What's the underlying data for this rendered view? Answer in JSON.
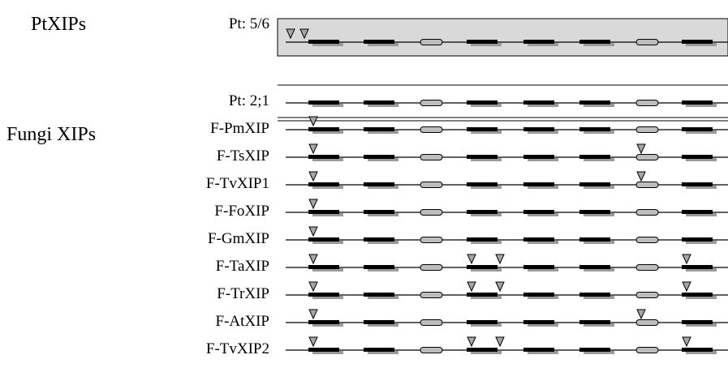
{
  "groups": {
    "pt": "PtXIPs",
    "fungi": "Fungi XIPs"
  },
  "segment_types": [
    "exon",
    "exon",
    "short",
    "exon",
    "exon",
    "exon",
    "short",
    "exon"
  ],
  "rows": [
    {
      "label": "Pt: 5/6",
      "markers": [
        {
          "slot": 0,
          "pos": "left-far"
        },
        {
          "slot": 0,
          "pos": "left"
        }
      ]
    },
    {
      "label": "Pt: 2;1",
      "markers": []
    },
    {
      "label": "F-PmXIP",
      "markers": [
        {
          "slot": 0,
          "pos": "left"
        }
      ]
    },
    {
      "label": "F-TsXIP",
      "markers": [
        {
          "slot": 0,
          "pos": "left"
        },
        {
          "slot": 6,
          "pos": "left"
        }
      ]
    },
    {
      "label": "F-TvXIP1",
      "markers": [
        {
          "slot": 0,
          "pos": "left"
        },
        {
          "slot": 6,
          "pos": "left"
        }
      ]
    },
    {
      "label": "F-FoXIP",
      "markers": [
        {
          "slot": 0,
          "pos": "left"
        }
      ]
    },
    {
      "label": "F-GmXIP",
      "markers": [
        {
          "slot": 0,
          "pos": "left"
        }
      ]
    },
    {
      "label": "F-TaXIP",
      "markers": [
        {
          "slot": 0,
          "pos": "left"
        },
        {
          "slot": 3,
          "pos": "left"
        },
        {
          "slot": 3,
          "pos": "right"
        },
        {
          "slot": 7,
          "pos": "left"
        }
      ]
    },
    {
      "label": "F-TrXIP",
      "markers": [
        {
          "slot": 0,
          "pos": "left"
        },
        {
          "slot": 3,
          "pos": "left"
        },
        {
          "slot": 3,
          "pos": "right"
        },
        {
          "slot": 7,
          "pos": "left"
        }
      ]
    },
    {
      "label": "F-AtXIP",
      "markers": [
        {
          "slot": 0,
          "pos": "left"
        },
        {
          "slot": 6,
          "pos": "left"
        }
      ]
    },
    {
      "label": "F-TvXIP2",
      "markers": [
        {
          "slot": 0,
          "pos": "left"
        },
        {
          "slot": 3,
          "pos": "left"
        },
        {
          "slot": 3,
          "pos": "right"
        },
        {
          "slot": 7,
          "pos": "left"
        }
      ]
    }
  ],
  "colors": {
    "marker_fill": "#a6a6a6",
    "exon_shadow": "#9a9a9a",
    "short_fill": "#bdbdbd",
    "pt_box_fill": "#d9d9d9"
  }
}
